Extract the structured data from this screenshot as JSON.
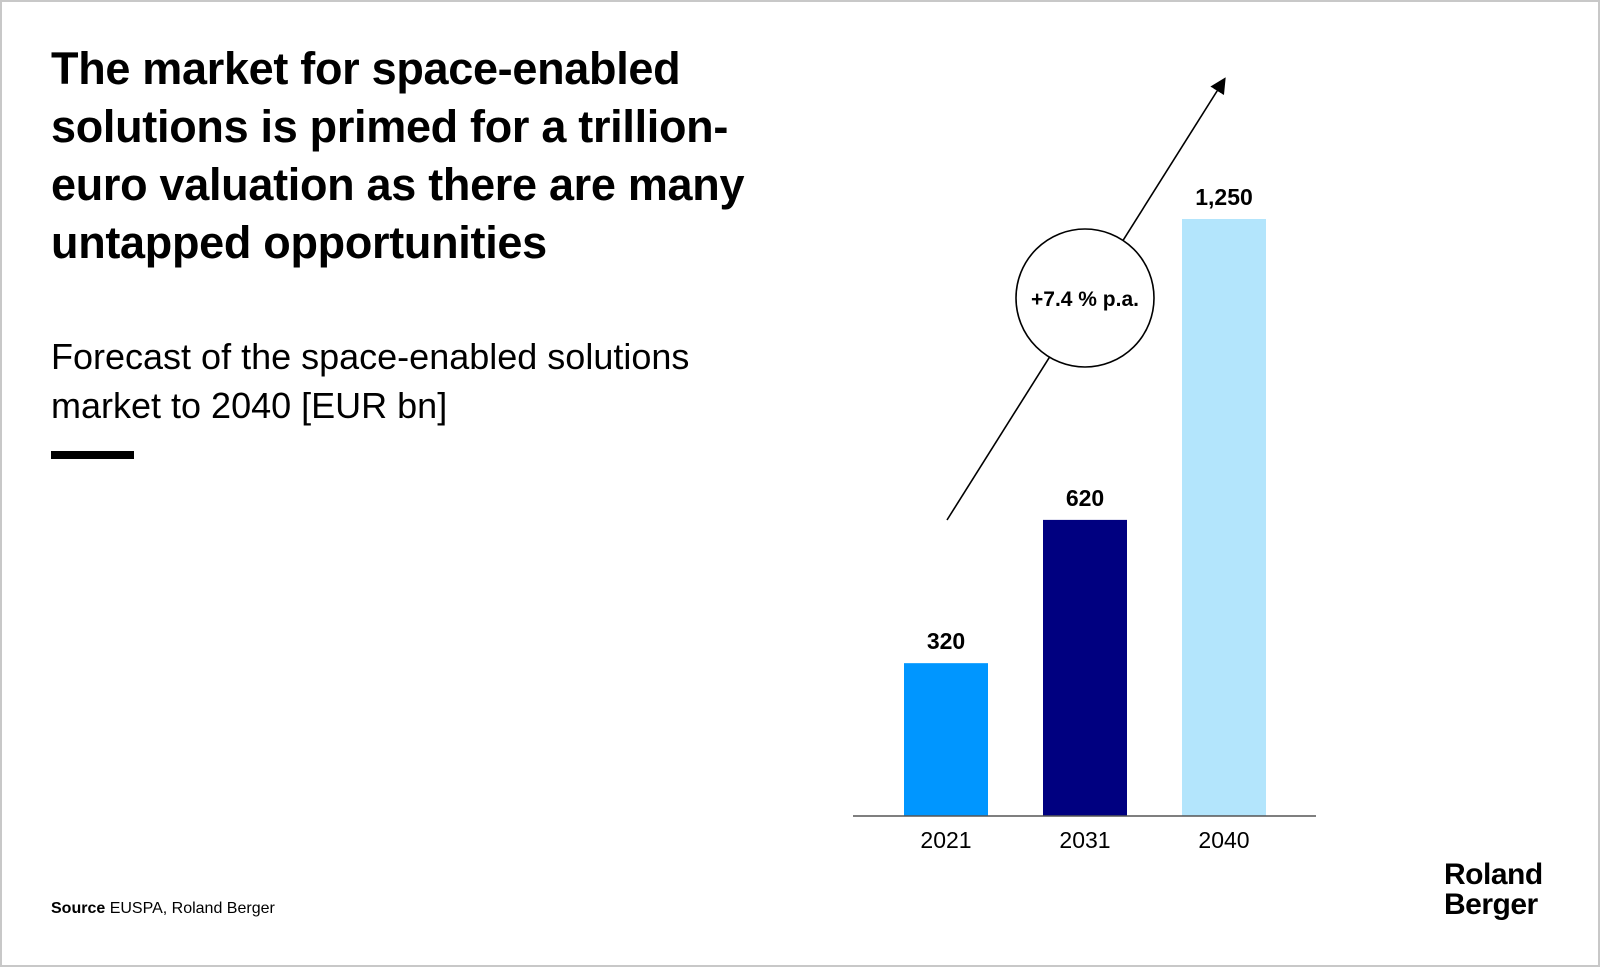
{
  "title": "The market for space-enabled solutions is primed for a trillion-euro valuation as there are many untapped opportunities",
  "subtitle": "Forecast of the space-enabled solutions market to 2040 [EUR bn]",
  "source_label": "Source",
  "source_text": "EUSPA, Roland Berger",
  "logo": {
    "line1": "Roland",
    "line2": "Berger"
  },
  "chart_data": {
    "type": "bar",
    "categories": [
      "2021",
      "2031",
      "2040"
    ],
    "values": [
      320,
      620,
      1250
    ],
    "value_labels": [
      "320",
      "620",
      "1,250"
    ],
    "colors": [
      "#0096ff",
      "#000080",
      "#b3e5fc"
    ],
    "ylim": [
      0,
      1250
    ],
    "grid": false,
    "annotation": "+7.4 % p.a.",
    "xlabel": "",
    "ylabel": ""
  }
}
